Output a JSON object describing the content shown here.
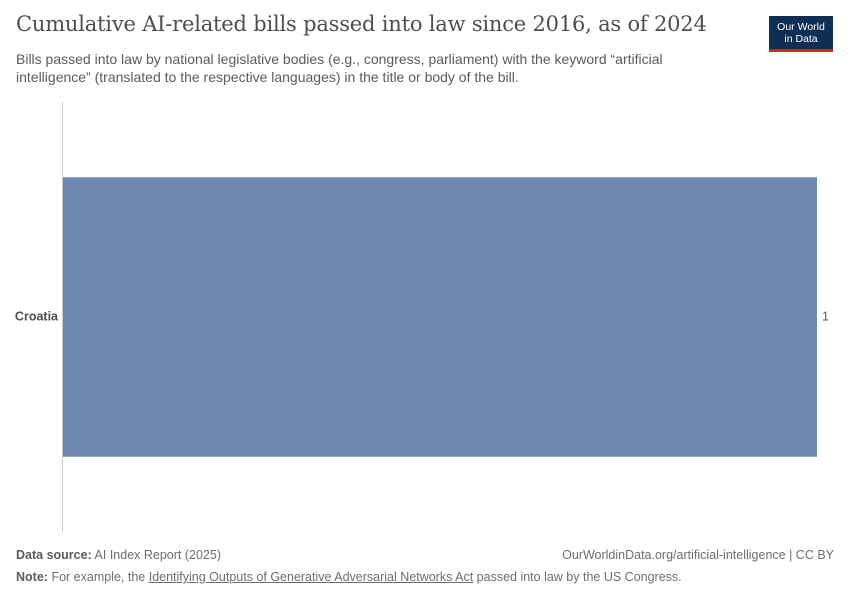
{
  "header": {
    "title": "Cumulative AI-related bills passed into law since 2016, as of 2024",
    "subtitle": "Bills passed into law by national legislative bodies (e.g., congress, parliament) with the keyword “artificial intelligence” (translated to the respective languages) in the title or body of the bill."
  },
  "logo": {
    "line1": "Our World",
    "line2": "in Data"
  },
  "colors": {
    "bar": "#6f88b0",
    "axis": "#cccccc",
    "logo_bg": "#0f2e54",
    "logo_accent": "#ce261e"
  },
  "chart_data": {
    "type": "bar",
    "orientation": "horizontal",
    "categories": [
      "Croatia"
    ],
    "values": [
      1
    ],
    "value_labels": [
      "1"
    ],
    "xlim": [
      0,
      1
    ],
    "grid": false,
    "legend": "none"
  },
  "footer": {
    "source_label": "Data source:",
    "source_value": "AI Index Report (2025)",
    "url": "OurWorldinData.org/artificial-intelligence | CC BY",
    "note_label": "Note:",
    "note_prefix": "For example, the",
    "note_link": "Identifying Outputs of Generative Adversarial Networks Act",
    "note_suffix": "passed into law by the US Congress."
  }
}
